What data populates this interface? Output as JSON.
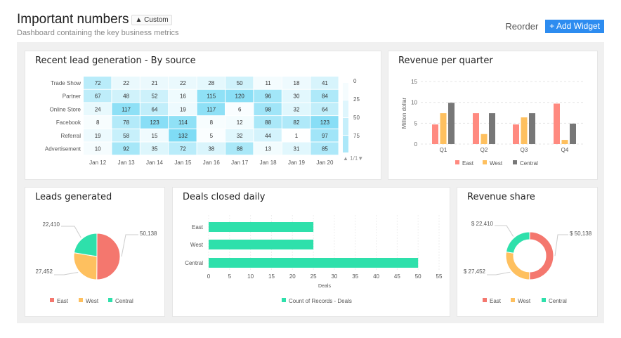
{
  "header": {
    "title": "Important numbers",
    "badge": "Custom",
    "subtitle": "Dashboard containing the key business metrics",
    "reorder": "Reorder",
    "add_widget": "+ Add Widget"
  },
  "colors": {
    "east": "#f4776e",
    "west": "#fec05f",
    "central": "#2ee0ab",
    "central_bar": "#777777",
    "east_bar": "#ff8a80",
    "accent": "#2d8cf0",
    "heat": "#7fdcf5"
  },
  "heatmap": {
    "title": "Recent lead generation - By source",
    "rows": [
      "Trade Show",
      "Partner",
      "Online Store",
      "Facebook",
      "Referral",
      "Advertisement"
    ],
    "columns": [
      "Jan 12",
      "Jan 13",
      "Jan 14",
      "Jan 15",
      "Jan 16",
      "Jan 17",
      "Jan 18",
      "Jan 19",
      "Jan 20"
    ],
    "values": [
      [
        72,
        22,
        21,
        22,
        28,
        50,
        11,
        18,
        41
      ],
      [
        67,
        48,
        52,
        16,
        115,
        120,
        96,
        30,
        84
      ],
      [
        24,
        117,
        64,
        19,
        117,
        6,
        98,
        32,
        64
      ],
      [
        8,
        78,
        123,
        114,
        8,
        12,
        88,
        82,
        123
      ],
      [
        19,
        58,
        15,
        132,
        5,
        32,
        44,
        1,
        97
      ],
      [
        10,
        92,
        35,
        72,
        38,
        88,
        13,
        31,
        85
      ]
    ],
    "legend": [
      "0",
      "25",
      "50",
      "75"
    ],
    "pager": "1/1"
  },
  "revenue": {
    "title": "Revenue per quarter",
    "chart_data": {
      "type": "bar",
      "categories": [
        "Q1",
        "Q2",
        "Q3",
        "Q4"
      ],
      "ylabel": "Million dollar",
      "ylim": [
        0,
        15
      ],
      "yticks": [
        "0",
        "5",
        "10",
        "15"
      ],
      "grid": true,
      "legend": "bottom",
      "series": [
        {
          "name": "East",
          "values": [
            4.7,
            7.4,
            4.7,
            9.7
          ]
        },
        {
          "name": "West",
          "values": [
            7.4,
            2.4,
            6.4,
            1.0
          ]
        },
        {
          "name": "Central",
          "values": [
            9.9,
            7.4,
            7.4,
            4.9
          ]
        }
      ]
    }
  },
  "leads": {
    "title": "Leads generated",
    "chart_data": {
      "type": "pie",
      "labels": [
        "East",
        "West",
        "Central"
      ],
      "values": [
        50138,
        27452,
        22410
      ],
      "value_labels": [
        "50,138",
        "27,452",
        "22,410"
      ],
      "legend": "bottom"
    }
  },
  "deals": {
    "title": "Deals closed daily",
    "chart_data": {
      "type": "bar",
      "orientation": "horizontal",
      "categories": [
        "East",
        "West",
        "Central"
      ],
      "values": [
        25,
        25,
        50
      ],
      "xlabel": "Deals",
      "xlim": [
        0,
        55
      ],
      "xticks": [
        "0",
        "5",
        "10",
        "15",
        "20",
        "25",
        "30",
        "35",
        "40",
        "45",
        "50",
        "55"
      ],
      "series_name": "Count of Records - Deals",
      "legend": "bottom"
    }
  },
  "share": {
    "title": "Revenue share",
    "chart_data": {
      "type": "pie",
      "donut": true,
      "labels": [
        "East",
        "West",
        "Central"
      ],
      "values": [
        50138,
        27452,
        22410
      ],
      "value_labels": [
        "$ 50,138",
        "$ 27,452",
        "$ 22,410"
      ],
      "legend": "bottom"
    }
  }
}
